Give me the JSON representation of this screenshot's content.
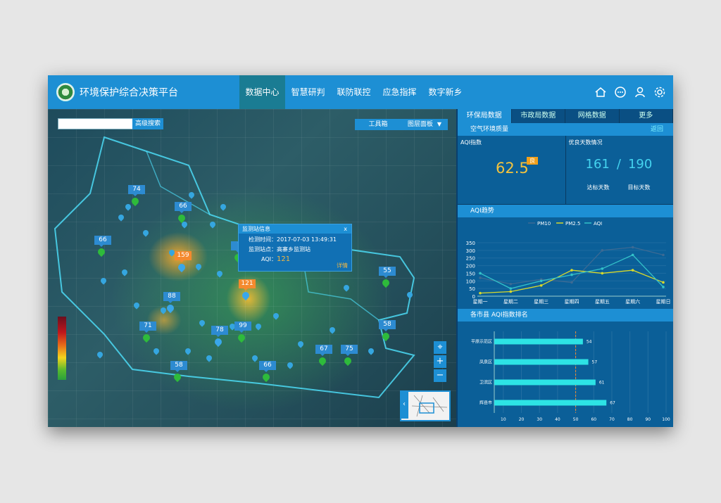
{
  "header": {
    "title": "环境保护综合决策平台",
    "nav": [
      "数据中心",
      "智慧研判",
      "联防联控",
      "应急指挥",
      "数字新乡"
    ],
    "active_nav": 0,
    "icons": [
      "home-icon",
      "message-icon",
      "user-icon",
      "settings-icon"
    ]
  },
  "map": {
    "search_placeholder": "",
    "advanced_search": "高级搜索",
    "toolbox": "工具箱",
    "layer_panel": "图层面板",
    "stations": [
      {
        "value": "74",
        "color": "green"
      },
      {
        "value": "66",
        "color": "green"
      },
      {
        "value": "66",
        "color": "green"
      },
      {
        "value": "7",
        "color": "green"
      },
      {
        "value": "159",
        "color": "blue-orange"
      },
      {
        "value": "121",
        "color": "blue-orange"
      },
      {
        "value": "88",
        "color": "blue"
      },
      {
        "value": "55",
        "color": "green"
      },
      {
        "value": "71",
        "color": "green"
      },
      {
        "value": "78",
        "color": "blue"
      },
      {
        "value": "99",
        "color": "green"
      },
      {
        "value": "58",
        "color": "green"
      },
      {
        "value": "67",
        "color": "green"
      },
      {
        "value": "75",
        "color": "green"
      },
      {
        "value": "58",
        "color": "green"
      },
      {
        "value": "66",
        "color": "green"
      }
    ],
    "popup": {
      "title": "监测站信息",
      "close": "x",
      "time": "检测时间：2017-07-03  13:49:31",
      "station": "监测站点：高寨乡监测站",
      "aqi_label": "AQI：",
      "aqi_value": "121",
      "details": "详情"
    },
    "zoom": [
      "+",
      "−"
    ]
  },
  "panel": {
    "tabs": [
      "环保局数据",
      "市政局数据",
      "网格数据",
      "更多"
    ],
    "active_tab": 0,
    "air_quality": {
      "title": "空气环境质量",
      "back": "返回",
      "aqi_label": "AQI指数",
      "aqi_value": "62.5",
      "aqi_level": "良",
      "good_days_label": "优良天数情况",
      "good_days": "161",
      "slash": "/",
      "target_days": "190",
      "reached_label": "达标天数",
      "target_label": "目标天数"
    },
    "trend": {
      "title": "AQI趋势"
    },
    "ranking": {
      "title": "各市县 AQI指数排名"
    }
  },
  "chart_data": [
    {
      "type": "line",
      "categories": [
        "星期一",
        "星期二",
        "星期三",
        "星期四",
        "星期五",
        "星期六",
        "星期日"
      ],
      "ylim": [
        0,
        350
      ],
      "yticks": [
        0,
        50,
        100,
        150,
        200,
        250,
        300,
        350
      ],
      "series": [
        {
          "name": "PM10",
          "values": [
            120,
            80,
            110,
            90,
            300,
            320,
            270
          ],
          "color": "#3c6a94"
        },
        {
          "name": "PM2.5",
          "values": [
            20,
            30,
            70,
            170,
            150,
            170,
            90
          ],
          "color": "#d8d92b"
        },
        {
          "name": "AQI",
          "values": [
            150,
            50,
            100,
            140,
            180,
            270,
            60
          ],
          "color": "#33c2c9"
        }
      ],
      "legend": "top"
    },
    {
      "type": "bar",
      "orientation": "horizontal",
      "categories": [
        "平原示范区",
        "凤泉区",
        "卫滨区",
        "辉县市"
      ],
      "values": [
        54,
        57,
        61,
        67
      ],
      "xticks": [
        10,
        20,
        30,
        40,
        50,
        60,
        70,
        80,
        90,
        100
      ],
      "xlim": [
        5,
        100
      ],
      "bar_color": "#2de3e5"
    }
  ]
}
